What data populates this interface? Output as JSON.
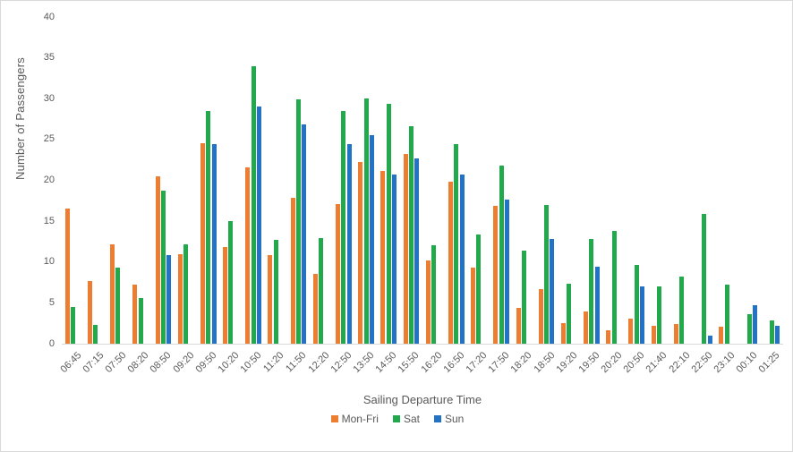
{
  "chart_data": {
    "type": "bar",
    "title": "",
    "xlabel": "Sailing Departure Time",
    "ylabel": "Number of Passengers",
    "ylim": [
      0,
      40
    ],
    "ytick_step": 5,
    "grid": false,
    "legend_position": "bottom",
    "text_color": "#595959",
    "axis_line_color": "#d9d9d9",
    "categories": [
      "06:45",
      "07:15",
      "07:50",
      "08:20",
      "08:50",
      "09:20",
      "09:50",
      "10:20",
      "10:50",
      "11:20",
      "11:50",
      "12:20",
      "12:50",
      "13:50",
      "14:50",
      "15:50",
      "16:20",
      "16:50",
      "17:20",
      "17:50",
      "18:20",
      "18:50",
      "19:20",
      "19:50",
      "20:20",
      "20:50",
      "21:40",
      "22:10",
      "22:50",
      "23:10",
      "00:10",
      "01:25"
    ],
    "series": [
      {
        "name": "Mon-Fri",
        "color": "#ED7D31",
        "values": [
          16.5,
          7.7,
          12.2,
          7.2,
          20.5,
          11.0,
          24.5,
          11.8,
          21.6,
          10.9,
          17.9,
          8.5,
          17.1,
          22.2,
          21.2,
          23.2,
          10.2,
          19.8,
          9.3,
          16.9,
          4.4,
          6.7,
          2.5,
          4.0,
          1.6,
          3.1,
          2.2,
          2.4,
          null,
          2.1,
          null,
          null
        ]
      },
      {
        "name": "Sat",
        "color": "#22A94C",
        "values": [
          4.5,
          2.3,
          9.3,
          5.6,
          18.7,
          12.2,
          28.5,
          15.0,
          34.0,
          12.7,
          29.9,
          12.9,
          28.5,
          30.0,
          29.4,
          26.6,
          12.1,
          24.4,
          13.4,
          21.8,
          11.4,
          17.0,
          7.3,
          12.8,
          13.8,
          9.7,
          7.0,
          8.2,
          15.9,
          7.2,
          3.6,
          2.9
        ]
      },
      {
        "name": "Sun",
        "color": "#2272C6",
        "values": [
          null,
          null,
          null,
          null,
          10.8,
          null,
          24.4,
          null,
          29.0,
          null,
          26.8,
          null,
          24.4,
          25.5,
          20.7,
          22.7,
          null,
          20.7,
          null,
          17.7,
          null,
          12.8,
          null,
          9.4,
          null,
          7.0,
          null,
          null,
          1.0,
          null,
          4.7,
          2.2
        ]
      }
    ]
  }
}
